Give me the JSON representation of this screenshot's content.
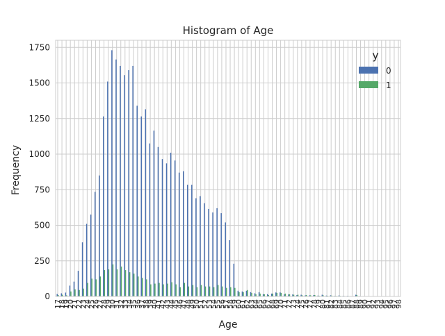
{
  "chart_data": {
    "type": "bar",
    "title": "Histogram of Age",
    "xlabel": "Age",
    "ylabel": "Frequency",
    "ylim": [
      0,
      1800
    ],
    "yticks": [
      0,
      250,
      500,
      750,
      1000,
      1250,
      1500,
      1750
    ],
    "grid": true,
    "legend": {
      "title": "y",
      "position": "top-right"
    },
    "categories": [
      17,
      18,
      19,
      20,
      21,
      22,
      23,
      24,
      25,
      26,
      27,
      28,
      29,
      30,
      31,
      32,
      33,
      34,
      35,
      36,
      37,
      38,
      39,
      40,
      41,
      42,
      43,
      44,
      45,
      46,
      47,
      48,
      49,
      50,
      51,
      52,
      53,
      54,
      55,
      56,
      57,
      58,
      59,
      60,
      61,
      62,
      63,
      64,
      65,
      66,
      67,
      68,
      69,
      70,
      71,
      72,
      73,
      74,
      75,
      76,
      77,
      78,
      79,
      80,
      81,
      82,
      83,
      84,
      85,
      86,
      87,
      88,
      89,
      90,
      91,
      92,
      93,
      94,
      95,
      96,
      97,
      98
    ],
    "series": [
      {
        "name": "0",
        "color": "#4c72b0",
        "values": [
          17,
          22,
          27,
          76,
          104,
          180,
          380,
          510,
          575,
          735,
          850,
          1265,
          1510,
          1730,
          1665,
          1620,
          1555,
          1590,
          1620,
          1340,
          1265,
          1315,
          1075,
          1165,
          1050,
          965,
          935,
          1010,
          955,
          870,
          880,
          785,
          785,
          690,
          705,
          655,
          615,
          590,
          620,
          585,
          520,
          395,
          230,
          40,
          35,
          40,
          30,
          22,
          30,
          16,
          16,
          20,
          28,
          28,
          15,
          14,
          14,
          10,
          12,
          8,
          8,
          10,
          6,
          12,
          6,
          8,
          4,
          7,
          4,
          4,
          2,
          12,
          3,
          2,
          2,
          2,
          1,
          1,
          1,
          1,
          2,
          1
        ]
      },
      {
        "name": "1",
        "color": "#55a868",
        "values": [
          10,
          12,
          8,
          35,
          50,
          45,
          55,
          95,
          125,
          120,
          140,
          185,
          190,
          225,
          190,
          210,
          185,
          170,
          160,
          140,
          130,
          120,
          85,
          90,
          95,
          85,
          90,
          100,
          85,
          65,
          95,
          70,
          80,
          65,
          80,
          70,
          70,
          65,
          80,
          70,
          60,
          65,
          60,
          30,
          30,
          45,
          25,
          15,
          20,
          15,
          10,
          20,
          25,
          25,
          20,
          15,
          12,
          12,
          8,
          10,
          8,
          10,
          5,
          8,
          5,
          6,
          4,
          4,
          3,
          3,
          2,
          10,
          2,
          2,
          2,
          1,
          1,
          1,
          1,
          1,
          1,
          1
        ]
      }
    ]
  }
}
